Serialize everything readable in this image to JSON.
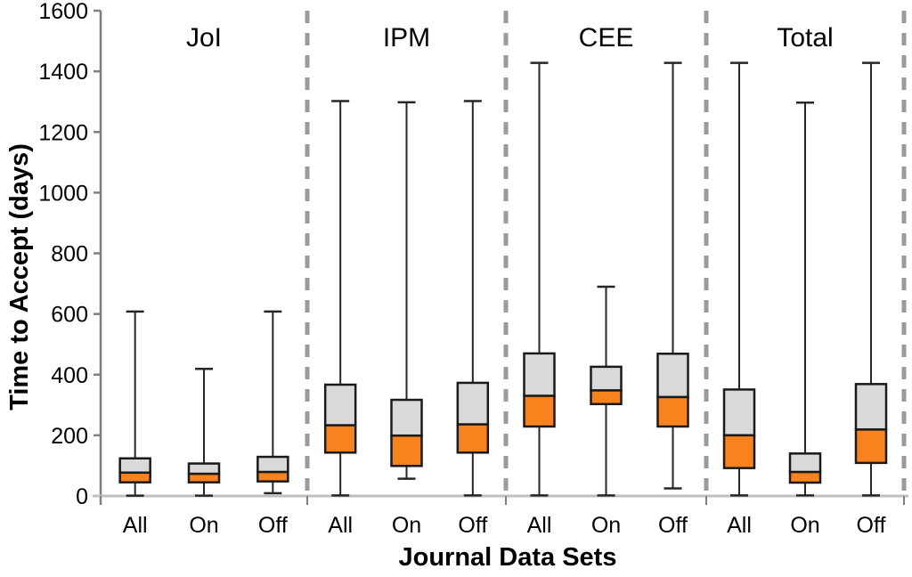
{
  "chart_data": {
    "type": "boxplot",
    "title": "",
    "xlabel": "Journal Data Sets",
    "ylabel": "Time to Accept (days)",
    "ylim": [
      0,
      1600
    ],
    "yticks": [
      0,
      200,
      400,
      600,
      800,
      1000,
      1200,
      1400,
      1600
    ],
    "grid": false,
    "legend": null,
    "categories": [
      "All",
      "On",
      "Off"
    ],
    "groups": [
      {
        "name": "JoI",
        "boxes": [
          {
            "label": "All",
            "min": 1,
            "q1": 45,
            "median": 77,
            "q3": 124,
            "max": 608
          },
          {
            "label": "On",
            "min": 1,
            "q1": 45,
            "median": 73,
            "q3": 107,
            "max": 419
          },
          {
            "label": "Off",
            "min": 9,
            "q1": 48,
            "median": 79,
            "q3": 129,
            "max": 608
          }
        ]
      },
      {
        "name": "IPM",
        "boxes": [
          {
            "label": "All",
            "min": 2,
            "q1": 143,
            "median": 233,
            "q3": 367,
            "max": 1302
          },
          {
            "label": "On",
            "min": 57,
            "q1": 99,
            "median": 199,
            "q3": 317,
            "max": 1298
          },
          {
            "label": "Off",
            "min": 2,
            "q1": 143,
            "median": 236,
            "q3": 373,
            "max": 1302
          }
        ]
      },
      {
        "name": "CEE",
        "boxes": [
          {
            "label": "All",
            "min": 2,
            "q1": 229,
            "median": 330,
            "q3": 470,
            "max": 1428
          },
          {
            "label": "On",
            "min": 2,
            "q1": 303,
            "median": 348,
            "q3": 426,
            "max": 690
          },
          {
            "label": "Off",
            "min": 25,
            "q1": 229,
            "median": 326,
            "q3": 469,
            "max": 1428
          }
        ]
      },
      {
        "name": "Total",
        "boxes": [
          {
            "label": "All",
            "min": 2,
            "q1": 92,
            "median": 200,
            "q3": 351,
            "max": 1428
          },
          {
            "label": "On",
            "min": 2,
            "q1": 44,
            "median": 79,
            "q3": 140,
            "max": 1297
          },
          {
            "label": "Off",
            "min": 2,
            "q1": 109,
            "median": 219,
            "q3": 369,
            "max": 1428
          }
        ]
      }
    ],
    "colors": {
      "lower_box_fill": "#F8821E",
      "upper_box_fill": "#D9D9D9",
      "box_border": "#1A1A1A",
      "whisker": "#262626",
      "separator": "#9A9A9A",
      "axis": "#7F7F7F",
      "baseline": "#BFBFBF",
      "text": "#000000"
    }
  }
}
